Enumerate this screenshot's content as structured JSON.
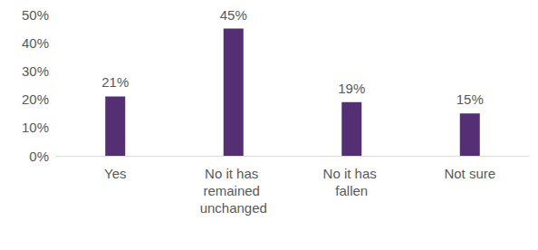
{
  "chart_data": {
    "type": "bar",
    "categories": [
      "Yes",
      "No it has remained unchanged",
      "No it has fallen",
      "Not sure"
    ],
    "values": [
      21,
      45,
      19,
      15
    ],
    "value_labels": [
      "21%",
      "45%",
      "19%",
      "15%"
    ],
    "data_labels": true,
    "color": "#542f74",
    "ylim": [
      0,
      50
    ],
    "yticks": [
      {
        "value": 0,
        "label": "0%"
      },
      {
        "value": 10,
        "label": "10%"
      },
      {
        "value": 20,
        "label": "20%"
      },
      {
        "value": 30,
        "label": "30%"
      },
      {
        "value": 40,
        "label": "40%"
      },
      {
        "value": 50,
        "label": "50%"
      }
    ],
    "grid": false
  }
}
